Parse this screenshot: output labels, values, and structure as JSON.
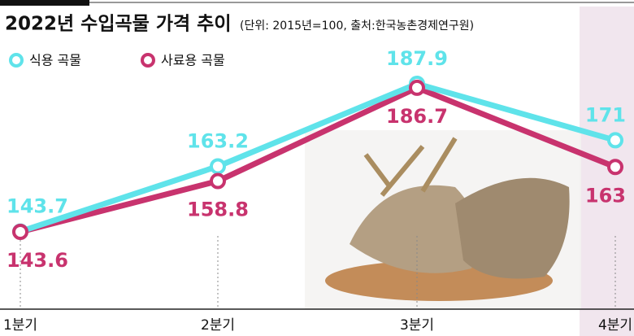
{
  "chart_data": {
    "type": "line",
    "title": "2022년 수입곡물 가격 추이",
    "subtitle": "(단위: 2015년=100, 출처:한국농촌경제연구원)",
    "categories": [
      "1분기",
      "2분기",
      "3분기",
      "4분기"
    ],
    "series": [
      {
        "name": "식용 곡물",
        "color": "#5fe3ea",
        "values": [
          143.7,
          163.2,
          187.9,
          171
        ]
      },
      {
        "name": "사료용 곡물",
        "color": "#c8336e",
        "values": [
          143.6,
          158.8,
          186.7,
          163
        ]
      }
    ]
  }
}
